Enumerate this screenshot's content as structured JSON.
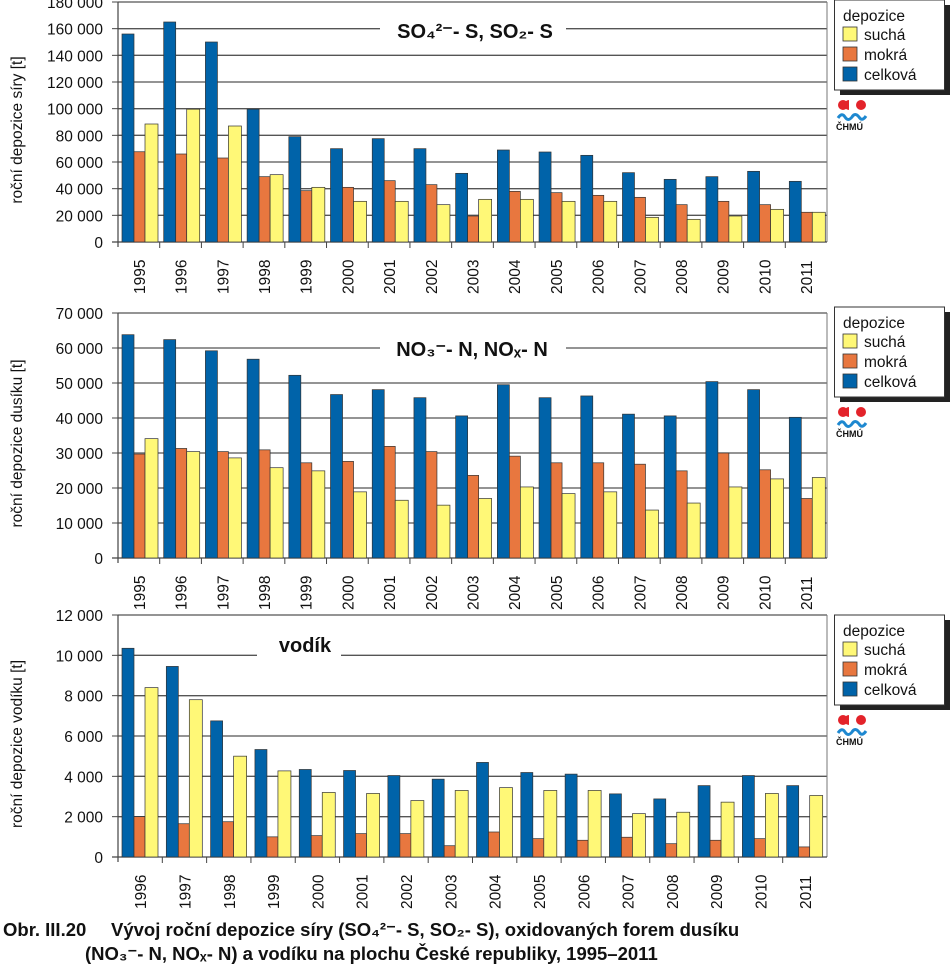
{
  "colors": {
    "suchá": "#fff877",
    "mokrá": "#e8773f",
    "celková": "#0063a9",
    "grid": "#555555"
  },
  "legend": {
    "title": "depozice",
    "items": [
      "suchá",
      "mokrá",
      "celková"
    ]
  },
  "logo": {
    "text": "ČHMÚ"
  },
  "caption": {
    "number": "Obr. III.20",
    "line1": "Vývoj roční depozice síry (SO₄²⁻- S, SO₂- S), oxidovaných forem dusíku",
    "line2": "(NO₃⁻- N, NOₓ- N) a vodíku na plochu České republiky, 1995–2011"
  },
  "chart_data": [
    {
      "type": "bar",
      "title": "SO₄²⁻- S, SO₂- S",
      "ylabel": "roční depozice síry [t]",
      "xlabel": "",
      "ylim": [
        0,
        180000
      ],
      "yticks": [
        "0",
        "20 000",
        "40 000",
        "60 000",
        "80 000",
        "100 000",
        "120 000",
        "140 000",
        "160 000",
        "180 000"
      ],
      "grid": true,
      "legend_position": "right",
      "categories": [
        "1995",
        "1996",
        "1997",
        "1998",
        "1999",
        "2000",
        "2001",
        "2002",
        "2003",
        "2004",
        "2005",
        "2006",
        "2007",
        "2008",
        "2009",
        "2010",
        "2011"
      ],
      "series": [
        {
          "name": "celková",
          "values": [
            156000,
            165000,
            150000,
            99600,
            79000,
            70000,
            77500,
            70000,
            51500,
            69000,
            67500,
            65000,
            52000,
            47000,
            49000,
            53000,
            45500
          ]
        },
        {
          "name": "mokrá",
          "values": [
            67700,
            66000,
            63000,
            49000,
            38500,
            41000,
            46000,
            43000,
            19500,
            38000,
            37000,
            35000,
            33500,
            28000,
            30500,
            28000,
            22300
          ]
        },
        {
          "name": "suchá",
          "values": [
            88500,
            99600,
            87000,
            50500,
            41000,
            30500,
            30500,
            28000,
            32000,
            32000,
            30500,
            30500,
            18500,
            17000,
            19500,
            24500,
            22300
          ]
        }
      ]
    },
    {
      "type": "bar",
      "title": "NO₃⁻- N, NOₓ- N",
      "ylabel": "roční depozice dusíku [t]",
      "xlabel": "",
      "ylim": [
        0,
        70000
      ],
      "yticks": [
        "0",
        "10 000",
        "20 000",
        "30 000",
        "40 000",
        "50 000",
        "60 000",
        "70 000"
      ],
      "grid": true,
      "legend_position": "right",
      "categories": [
        "1995",
        "1996",
        "1997",
        "1998",
        "1999",
        "2000",
        "2001",
        "2002",
        "2003",
        "2004",
        "2005",
        "2006",
        "2007",
        "2008",
        "2009",
        "2010",
        "2011"
      ],
      "series": [
        {
          "name": "celková",
          "values": [
            63800,
            62400,
            59200,
            56800,
            52200,
            46700,
            48100,
            45800,
            40600,
            49500,
            45800,
            46300,
            41100,
            40600,
            50400,
            48100,
            40200
          ]
        },
        {
          "name": "mokrá",
          "values": [
            29700,
            31300,
            30400,
            30900,
            27200,
            27600,
            31900,
            30400,
            23600,
            29100,
            27200,
            27200,
            26800,
            24900,
            30000,
            25200,
            17000
          ]
        },
        {
          "name": "suchá",
          "values": [
            34100,
            30400,
            28600,
            25800,
            24900,
            18900,
            16500,
            15100,
            17000,
            20300,
            18400,
            18900,
            13700,
            15700,
            20300,
            22600,
            23000
          ]
        }
      ]
    },
    {
      "type": "bar",
      "title": "vodík",
      "ylabel": "roční depozice vodíku [t]",
      "xlabel": "",
      "ylim": [
        0,
        12000
      ],
      "yticks": [
        "0",
        "2 000",
        "4 000",
        "6 000",
        "8 000",
        "10 000",
        "12 000"
      ],
      "grid": true,
      "legend_position": "right",
      "categories": [
        "1996",
        "1997",
        "1998",
        "1999",
        "2000",
        "2001",
        "2002",
        "2003",
        "2004",
        "2005",
        "2006",
        "2007",
        "2008",
        "2009",
        "2010",
        "2011"
      ],
      "series": [
        {
          "name": "celková",
          "values": [
            10350,
            9450,
            6750,
            5330,
            4340,
            4290,
            4040,
            3860,
            4690,
            4190,
            4110,
            3130,
            2880,
            3540,
            4040,
            3540
          ]
        },
        {
          "name": "mokrá",
          "values": [
            2000,
            1650,
            1750,
            1000,
            1060,
            1160,
            1160,
            560,
            1240,
            910,
            830,
            980,
            660,
            830,
            910,
            500
          ]
        },
        {
          "name": "suchá",
          "values": [
            8400,
            7800,
            5000,
            4270,
            3200,
            3150,
            2800,
            3300,
            3440,
            3300,
            3300,
            2150,
            2220,
            2720,
            3150,
            3050
          ]
        }
      ]
    }
  ]
}
